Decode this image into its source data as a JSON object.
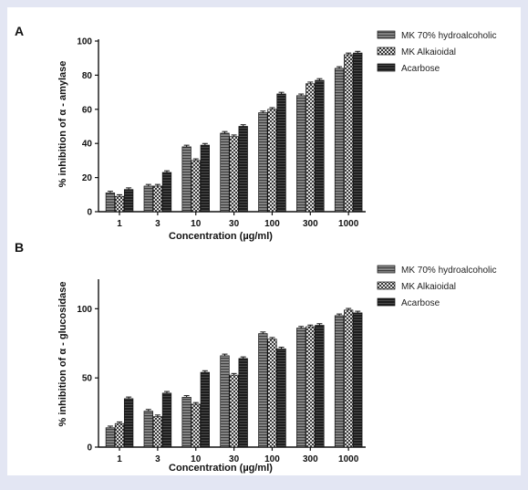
{
  "chart_data": [
    {
      "type": "bar",
      "panel_label": "A",
      "categories": [
        "1",
        "3",
        "10",
        "30",
        "100",
        "300",
        "1000"
      ],
      "series": [
        {
          "name": "MK 70% hydroalcoholic",
          "values": [
            11,
            15,
            38,
            46,
            58,
            68,
            84
          ]
        },
        {
          "name": "MK Alkaioidal",
          "values": [
            9,
            15,
            30,
            44,
            60,
            75,
            92
          ]
        },
        {
          "name": "Acarbose",
          "values": [
            13,
            23,
            39,
            50,
            69,
            77,
            93
          ]
        }
      ],
      "xlabel": "Concentration (µg/ml)",
      "ylabel": "% inhibition of α - amylase",
      "ylim": [
        0,
        100
      ],
      "yticks": [
        "0",
        "20",
        "40",
        "60",
        "80",
        "100"
      ],
      "legend": "top-right",
      "grid": false
    },
    {
      "type": "bar",
      "panel_label": "B",
      "categories": [
        "1",
        "3",
        "10",
        "30",
        "100",
        "300",
        "1000"
      ],
      "series": [
        {
          "name": "MK 70% hydroalcoholic",
          "values": [
            14,
            26,
            36,
            66,
            82,
            86,
            95
          ]
        },
        {
          "name": "MK Alkaioidal",
          "values": [
            17,
            22,
            31,
            52,
            78,
            87,
            99
          ]
        },
        {
          "name": "Acarbose",
          "values": [
            35,
            39,
            54,
            64,
            71,
            88,
            97
          ]
        }
      ],
      "xlabel": "Concentration (µg/ml)",
      "ylabel": "% inhibition of α - glucosidase",
      "ylim": [
        0,
        120
      ],
      "yticks": [
        "0",
        "50",
        "100"
      ],
      "legend": "top-right",
      "grid": false
    }
  ],
  "series_colors": [
    "#6b6b6b",
    "#9a9a9a",
    "#1a1a1a"
  ],
  "series_patterns": [
    "fine-stripes",
    "checker",
    "solid-dark"
  ]
}
